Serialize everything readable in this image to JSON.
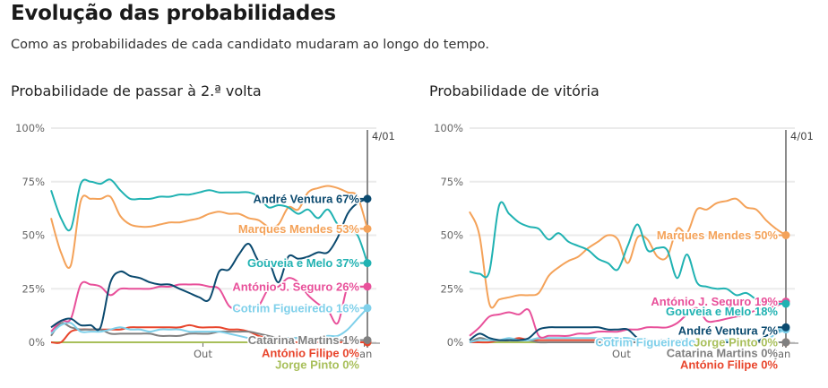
{
  "header": {
    "title": "Evolução das probabilidades",
    "subtitle": "Como as probabilidades de cada candidato mudaram ao longo do tempo."
  },
  "colors": {
    "Gouveia e Melo": "#20b2b2",
    "Marques Mendes": "#f4a259",
    "André Ventura": "#0b4a6f",
    "António J. Seguro": "#e8509a",
    "Cotrim Figueiredo": "#7fd0ea",
    "Catarina Martins": "#808080",
    "António Filipe": "#e8452c",
    "Jorge Pinto": "#a8bf5a"
  },
  "chart_data": [
    {
      "type": "line",
      "title": "Probabilidade de passar à 2.ª volta",
      "ylim": [
        0,
        100
      ],
      "yticks": [
        "0%",
        "25%",
        "50%",
        "75%",
        "100%"
      ],
      "ytick_values": [
        0,
        25,
        50,
        75,
        100
      ],
      "xticks": [
        {
          "label": "Out",
          "t": 0.48
        },
        {
          "label": "Jan",
          "t": 0.99
        }
      ],
      "marker_label": "4/01",
      "grid": true,
      "series": [
        {
          "name": "Gouveia e Melo",
          "final": "37%",
          "values": [
            71,
            58,
            53,
            74,
            75,
            74,
            76,
            71,
            67,
            67,
            67,
            68,
            68,
            69,
            69,
            70,
            71,
            70,
            70,
            70,
            70,
            68,
            63,
            64,
            63,
            60,
            62,
            58,
            62,
            55,
            52,
            50,
            37
          ]
        },
        {
          "name": "Marques Mendes",
          "final": "53%",
          "values": [
            58,
            42,
            36,
            66,
            67,
            67,
            68,
            59,
            55,
            54,
            54,
            55,
            56,
            56,
            57,
            58,
            60,
            61,
            60,
            60,
            58,
            57,
            54,
            55,
            63,
            62,
            70,
            72,
            73,
            72,
            70,
            68,
            53
          ]
        },
        {
          "name": "André Ventura",
          "final": "67%",
          "values": [
            7,
            10,
            11,
            8,
            8,
            7,
            28,
            33,
            31,
            30,
            28,
            27,
            27,
            25,
            23,
            21,
            20,
            33,
            34,
            41,
            46,
            38,
            38,
            28,
            40,
            39,
            40,
            42,
            42,
            49,
            60,
            65,
            67
          ]
        },
        {
          "name": "António J. Seguro",
          "final": "26%",
          "values": [
            5,
            10,
            11,
            27,
            27,
            26,
            22,
            25,
            25,
            25,
            25,
            26,
            26,
            27,
            27,
            27,
            26,
            25,
            17,
            15,
            15,
            17,
            25,
            26,
            30,
            28,
            22,
            18,
            15,
            9,
            26,
            26,
            26
          ]
        },
        {
          "name": "Cotrim Figueiredo",
          "final": "16%",
          "values": [
            4,
            8,
            9,
            5,
            5,
            5,
            6,
            7,
            6,
            6,
            5,
            6,
            6,
            6,
            5,
            5,
            5,
            5,
            4,
            3,
            2,
            2,
            2,
            2,
            2,
            2,
            2,
            2,
            3,
            3,
            6,
            11,
            16
          ]
        },
        {
          "name": "Catarina Martins",
          "final": "1%",
          "values": [
            3,
            9,
            7,
            6,
            6,
            6,
            4,
            4,
            4,
            4,
            4,
            3,
            3,
            3,
            4,
            4,
            4,
            5,
            5,
            5,
            5,
            4,
            3,
            2,
            2,
            2,
            2,
            2,
            1,
            1,
            1,
            1,
            1
          ]
        },
        {
          "name": "António Filipe",
          "final": "0%",
          "values": [
            0,
            0,
            5,
            6,
            6,
            6,
            6,
            6,
            7,
            7,
            7,
            7,
            7,
            7,
            8,
            7,
            7,
            7,
            6,
            6,
            5,
            3,
            2,
            1,
            0,
            0,
            0,
            0,
            0,
            0,
            0,
            0,
            0
          ]
        },
        {
          "name": "Jorge Pinto",
          "final": "0%",
          "values": [
            0,
            0,
            0,
            0,
            0,
            0,
            0,
            0,
            0,
            0,
            0,
            0,
            0,
            0,
            0,
            0,
            0,
            0,
            0,
            0,
            0,
            0,
            0,
            0,
            0,
            0,
            0,
            0,
            0,
            0,
            0,
            0,
            0
          ]
        }
      ],
      "labels": [
        {
          "text": "André Ventura  67%",
          "series": "André Ventura",
          "at": 67
        },
        {
          "text": "Marques Mendes  53%",
          "series": "Marques Mendes",
          "at": 53
        },
        {
          "text": "Gouveia e Melo  37%",
          "series": "Gouveia e Melo",
          "at": 37
        },
        {
          "text": "António J. Seguro  26%",
          "series": "António J. Seguro",
          "at": 26
        },
        {
          "text": "Cotrim Figueiredo  16%",
          "series": "Cotrim Figueiredo",
          "at": 16
        },
        {
          "text": "Catarina Martins  1%",
          "series": "Catarina Martins",
          "at": 1
        },
        {
          "text": "António Filipe  0%",
          "series": "António Filipe",
          "at": -5
        },
        {
          "text": "Jorge Pinto  0%",
          "series": "Jorge Pinto",
          "at": -10.5
        }
      ]
    },
    {
      "type": "line",
      "title": "Probabilidade de vitória",
      "ylim": [
        0,
        100
      ],
      "yticks": [
        "0%",
        "25%",
        "50%",
        "75%",
        "100%"
      ],
      "ytick_values": [
        0,
        25,
        50,
        75,
        100
      ],
      "xticks": [
        {
          "label": "Out",
          "t": 0.48
        },
        {
          "label": "Jan",
          "t": 0.99
        }
      ],
      "marker_label": "4/01",
      "grid": true,
      "series": [
        {
          "name": "Gouveia e Melo",
          "final": "18%",
          "values": [
            33,
            32,
            33,
            64,
            60,
            56,
            54,
            53,
            48,
            51,
            47,
            45,
            43,
            39,
            37,
            34,
            45,
            55,
            43,
            44,
            43,
            30,
            41,
            28,
            26,
            25,
            25,
            22,
            23,
            20,
            18,
            18,
            18
          ]
        },
        {
          "name": "Marques Mendes",
          "final": "50%",
          "values": [
            61,
            50,
            18,
            20,
            21,
            22,
            22,
            23,
            31,
            35,
            38,
            40,
            44,
            47,
            50,
            48,
            37,
            49,
            48,
            40,
            40,
            53,
            51,
            62,
            62,
            65,
            66,
            67,
            63,
            62,
            57,
            53,
            50
          ]
        },
        {
          "name": "André Ventura",
          "final": "7%",
          "values": [
            1,
            4,
            2,
            1,
            1,
            1,
            2,
            6,
            7,
            7,
            7,
            7,
            7,
            7,
            6,
            6,
            6,
            2,
            1,
            1,
            1,
            1,
            0,
            0,
            0,
            0,
            0,
            0,
            0,
            0,
            3,
            5,
            7
          ]
        },
        {
          "name": "António J. Seguro",
          "final": "19%",
          "values": [
            3,
            7,
            12,
            13,
            14,
            13,
            15,
            3,
            3,
            3,
            3,
            4,
            4,
            5,
            5,
            5,
            6,
            6,
            7,
            7,
            7,
            9,
            13,
            16,
            10,
            10,
            11,
            12,
            13,
            15,
            16,
            17,
            19
          ]
        },
        {
          "name": "Cotrim Figueiredo",
          "final": "6%",
          "values": [
            0,
            1,
            1,
            1,
            2,
            1,
            1,
            2,
            2,
            2,
            2,
            2,
            2,
            2,
            2,
            2,
            2,
            1,
            1,
            1,
            1,
            1,
            1,
            1,
            1,
            1,
            1,
            1,
            1,
            1,
            1,
            4,
            6
          ]
        },
        {
          "name": "Catarina Martins",
          "final": "0%",
          "values": [
            0,
            2,
            1,
            1,
            1,
            1,
            1,
            0,
            0,
            0,
            0,
            0,
            0,
            0,
            0,
            0,
            0,
            0,
            0,
            0,
            0,
            0,
            0,
            0,
            0,
            0,
            0,
            0,
            0,
            0,
            0,
            0,
            0
          ]
        },
        {
          "name": "António Filipe",
          "final": "0%",
          "values": [
            0,
            0,
            0,
            1,
            1,
            2,
            1,
            1,
            1,
            1,
            1,
            1,
            1,
            1,
            1,
            0,
            0,
            0,
            0,
            0,
            0,
            0,
            0,
            0,
            0,
            0,
            0,
            0,
            0,
            0,
            0,
            0,
            0
          ]
        },
        {
          "name": "Jorge Pinto",
          "final": "0%",
          "values": [
            0,
            0,
            0,
            0,
            0,
            0,
            0,
            0,
            0,
            0,
            0,
            0,
            0,
            0,
            0,
            0,
            0,
            0,
            0,
            0,
            0,
            0,
            0,
            0,
            0,
            0,
            0,
            0,
            0,
            0,
            0,
            0,
            0
          ]
        }
      ],
      "labels": [
        {
          "text": "Marques Mendes  50%",
          "series": "Marques Mendes",
          "at": 50
        },
        {
          "text": "António J. Seguro  19%",
          "series": "António J. Seguro",
          "at": 19
        },
        {
          "text": "Gouveia e Melo  18%",
          "series": "Gouveia e Melo",
          "at": 14.5
        },
        {
          "text": "André Ventura  7%",
          "series": "André Ventura",
          "at": 5.5
        },
        {
          "text": "Cotrim Figueiredo",
          "series": "Cotrim Figueiredo",
          "at": 0,
          "offset": 0.26
        },
        {
          "text": "Jorge Pinto  0%",
          "series": "Jorge Pinto",
          "at": 0
        },
        {
          "text": "Catarina Martins  0%",
          "series": "Catarina Martins",
          "at": -5
        },
        {
          "text": "António Filipe  0%",
          "series": "António Filipe",
          "at": -10.5
        }
      ]
    }
  ]
}
